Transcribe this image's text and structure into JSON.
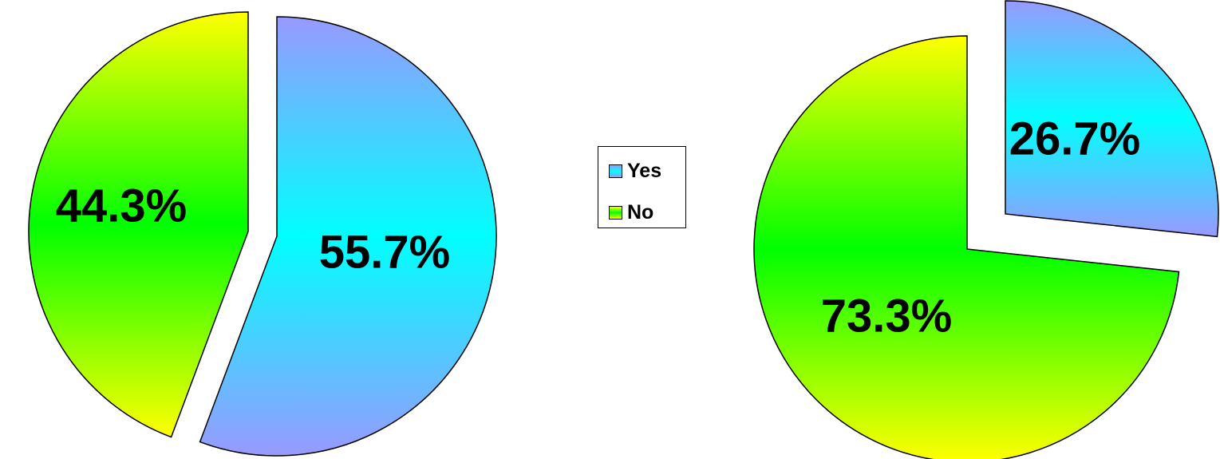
{
  "chart_data": [
    {
      "type": "pie",
      "categories": [
        "Yes",
        "No"
      ],
      "values": [
        55.7,
        44.3
      ],
      "labels": [
        "55.7%",
        "44.3%"
      ],
      "exploded": true
    },
    {
      "type": "pie",
      "categories": [
        "Yes",
        "No"
      ],
      "values": [
        26.7,
        73.3
      ],
      "labels": [
        "26.7%",
        "73.3%"
      ],
      "exploded": true
    }
  ],
  "legend": {
    "placement": "center",
    "items": [
      {
        "label": "Yes",
        "color": "#33eeff"
      },
      {
        "label": "No",
        "color": "#ccff00"
      }
    ]
  },
  "colors": {
    "yes_gradient": [
      "#9999ff",
      "#00ffff",
      "#9999ff"
    ],
    "no_gradient": [
      "#ffff00",
      "#00ff00",
      "#ffff00"
    ]
  }
}
